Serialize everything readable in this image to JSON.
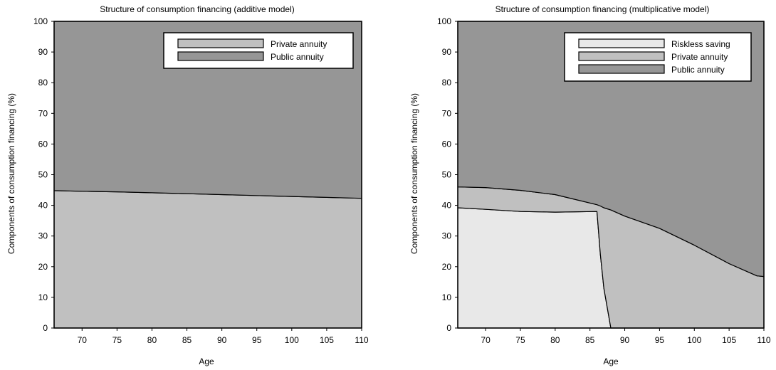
{
  "chart_data": [
    {
      "type": "area",
      "stacked": true,
      "title": "Structure of consumption financing (additive model)",
      "xlabel": "Age",
      "ylabel": "Components of consumption financing (%)",
      "xlim": [
        66,
        110
      ],
      "ylim": [
        0,
        100
      ],
      "xticks": [
        70,
        75,
        80,
        85,
        90,
        95,
        100,
        105,
        110
      ],
      "yticks": [
        0,
        10,
        20,
        30,
        40,
        50,
        60,
        70,
        80,
        90,
        100
      ],
      "grid": false,
      "legend": {
        "position": "top-right",
        "entries": [
          "Private annuity",
          "Public annuity"
        ]
      },
      "x": [
        66,
        70,
        75,
        80,
        85,
        90,
        95,
        100,
        105,
        110
      ],
      "series": [
        {
          "name": "Private annuity",
          "color": "#c0c0c0",
          "values": [
            44.8,
            44.6,
            44.4,
            44.1,
            43.8,
            43.5,
            43.2,
            42.9,
            42.6,
            42.3
          ]
        },
        {
          "name": "Public annuity",
          "color": "#969696",
          "values": [
            55.2,
            55.4,
            55.6,
            55.9,
            56.2,
            56.5,
            56.8,
            57.1,
            57.4,
            57.7
          ]
        }
      ]
    },
    {
      "type": "area",
      "stacked": true,
      "title": "Structure of consumption financing (multiplicative model)",
      "xlabel": "Age",
      "ylabel": "Components of consumption financing (%)",
      "xlim": [
        66,
        110
      ],
      "ylim": [
        0,
        100
      ],
      "xticks": [
        70,
        75,
        80,
        85,
        90,
        95,
        100,
        105,
        110
      ],
      "yticks": [
        0,
        10,
        20,
        30,
        40,
        50,
        60,
        70,
        80,
        90,
        100
      ],
      "grid": false,
      "legend": {
        "position": "top-right",
        "entries": [
          "Riskless saving",
          "Private annuity",
          "Public annuity"
        ]
      },
      "x": [
        66,
        70,
        75,
        80,
        86,
        86.5,
        87,
        88,
        90,
        95,
        100,
        105,
        109,
        110
      ],
      "series": [
        {
          "name": "Riskless saving",
          "color": "#e8e8e8",
          "values": [
            39.2,
            38.7,
            38.0,
            37.8,
            38.0,
            24.0,
            13.0,
            0,
            0,
            0,
            0,
            0,
            0,
            0
          ]
        },
        {
          "name": "Private annuity",
          "color": "#c0c0c0",
          "values": [
            6.8,
            7.1,
            6.9,
            5.7,
            2.2,
            15.8,
            26.2,
            38.5,
            36.5,
            32.5,
            27.0,
            21.0,
            17.0,
            16.8
          ]
        },
        {
          "name": "Public annuity",
          "color": "#969696",
          "values": [
            54.0,
            54.2,
            55.1,
            56.5,
            59.8,
            60.2,
            60.8,
            61.5,
            63.5,
            67.5,
            73.0,
            79.0,
            83.0,
            83.2
          ]
        }
      ]
    }
  ]
}
